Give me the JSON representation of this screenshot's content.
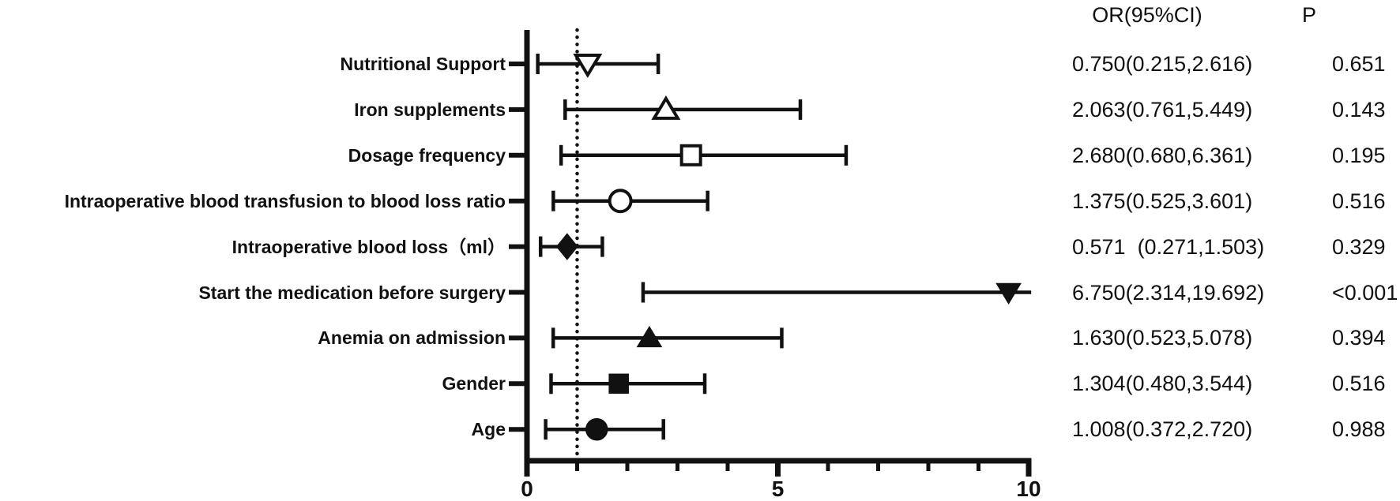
{
  "chart_data": {
    "type": "forest",
    "title": "",
    "or_column_header": "OR(95%CI)",
    "p_column_header": "P",
    "x_axis": {
      "min": 0,
      "max": 10,
      "labeled_ticks": [
        {
          "value": 0,
          "label": "0"
        },
        {
          "value": 5,
          "label": "5"
        },
        {
          "value": 10,
          "label": "10"
        }
      ],
      "minor_ticks": [
        1,
        2,
        3,
        4,
        6,
        7,
        8,
        9
      ],
      "reference_line_x": 1
    },
    "rows": [
      {
        "label": "Nutritional Support",
        "or": 0.75,
        "ci_low": 0.215,
        "ci_high": 2.616,
        "or_text": "0.750(0.215,2.616)",
        "p_text": "0.651",
        "marker": "triangle-down",
        "filled": false,
        "marker_plot_x": 1.21
      },
      {
        "label": "Iron supplements",
        "or": 2.063,
        "ci_low": 0.761,
        "ci_high": 5.449,
        "or_text": "2.063(0.761,5.449)",
        "p_text": "0.143",
        "marker": "triangle-up",
        "filled": false,
        "marker_plot_x": 2.77
      },
      {
        "label": "Dosage frequency",
        "or": 2.68,
        "ci_low": 0.68,
        "ci_high": 6.361,
        "or_text": "2.680(0.680,6.361)",
        "p_text": "0.195",
        "marker": "square",
        "filled": false,
        "marker_plot_x": 3.27
      },
      {
        "label": "Intraoperative blood transfusion to blood loss ratio",
        "or": 1.375,
        "ci_low": 0.525,
        "ci_high": 3.601,
        "or_text": "1.375(0.525,3.601)",
        "p_text": "0.516",
        "marker": "circle",
        "filled": false,
        "marker_plot_x": 1.86
      },
      {
        "label": "Intraoperative blood loss（ml）",
        "or": 0.571,
        "ci_low": 0.271,
        "ci_high": 1.503,
        "or_text": "0.571  (0.271,1.503)",
        "p_text": "0.329",
        "marker": "diamond",
        "filled": true,
        "marker_plot_x": 0.8
      },
      {
        "label": "Start the medication before surgery",
        "or": 6.75,
        "ci_low": 2.314,
        "ci_high": 19.692,
        "or_text": "6.750(2.314,19.692)",
        "p_text": "<0.001",
        "marker": "triangle-down",
        "filled": true,
        "marker_plot_x": 9.6,
        "ci_clipped_high": true
      },
      {
        "label": "Anemia on admission",
        "or": 1.63,
        "ci_low": 0.523,
        "ci_high": 5.078,
        "or_text": "1.630(0.523,5.078)",
        "p_text": "0.394",
        "marker": "triangle-up",
        "filled": true,
        "marker_plot_x": 2.44
      },
      {
        "label": "Gender",
        "or": 1.304,
        "ci_low": 0.48,
        "ci_high": 3.544,
        "or_text": "1.304(0.480,3.544)",
        "p_text": "0.516",
        "marker": "square",
        "filled": true,
        "marker_plot_x": 1.83
      },
      {
        "label": "Age",
        "or": 1.008,
        "ci_low": 0.372,
        "ci_high": 2.72,
        "or_text": "1.008(0.372,2.720)",
        "p_text": "0.988",
        "marker": "circle",
        "filled": true,
        "marker_plot_x": 1.39
      }
    ]
  }
}
